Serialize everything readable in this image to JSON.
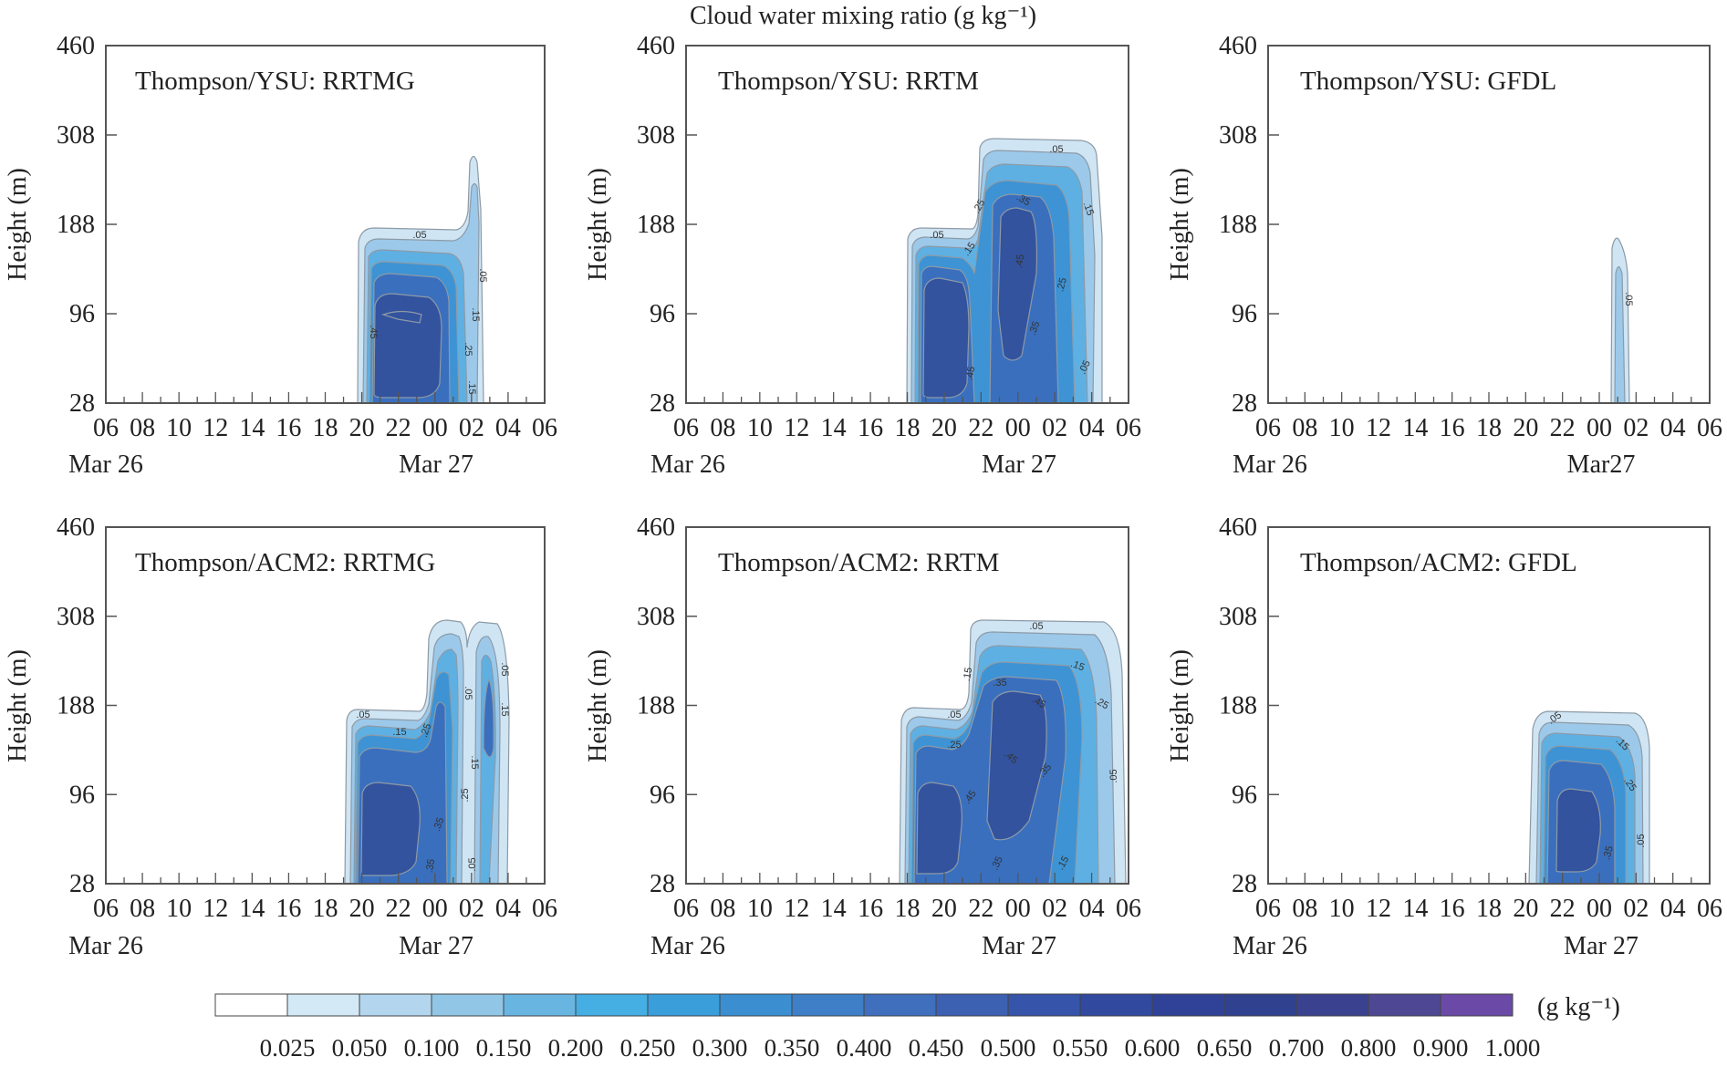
{
  "figure_title": "Cloud water mixing ratio (g kg⁻¹)",
  "colorbar": {
    "unit": "(g kg⁻¹)",
    "levels": [
      "0.025",
      "0.050",
      "0.100",
      "0.150",
      "0.200",
      "0.250",
      "0.300",
      "0.350",
      "0.400",
      "0.450",
      "0.500",
      "0.550",
      "0.600",
      "0.650",
      "0.700",
      "0.800",
      "0.900",
      "1.000"
    ],
    "colors": [
      "#ffffff",
      "#d4e9f6",
      "#b3d6ee",
      "#92c6e6",
      "#69b5e2",
      "#45aee3",
      "#3a9edb",
      "#3b8fd1",
      "#3f7fc8",
      "#3f6fbd",
      "#3c60b2",
      "#3654a9",
      "#31499f",
      "#2f4297",
      "#30418f",
      "#3a428f",
      "#4e4793",
      "#6a4aa6"
    ]
  },
  "axes": {
    "y_label": "Height (m)",
    "y_ticks": [
      "28",
      "96",
      "188",
      "308",
      "460"
    ],
    "x_ticks": [
      "06",
      "08",
      "10",
      "12",
      "14",
      "16",
      "18",
      "20",
      "22",
      "00",
      "02",
      "04",
      "06"
    ],
    "date_start": "Mar 26",
    "date_end": "Mar 27",
    "date_end_gfdl_ysu": "Mar27"
  },
  "chart_data": [
    {
      "type": "heatmap",
      "title": "Thompson/YSU: RRTMG",
      "xlabel": "",
      "ylabel": "Height (m)",
      "x_range": [
        "Mar 26 06",
        "Mar 27 06"
      ],
      "ylim": [
        28,
        460
      ],
      "cloud_time_range": [
        "Mar 26 20",
        "Mar 27 02"
      ],
      "cloud_top_m": 188,
      "max_value": 0.45,
      "contour_labels": [
        ".05",
        ".05",
        ".15",
        ".25",
        ".15",
        ".45"
      ]
    },
    {
      "type": "heatmap",
      "title": "Thompson/YSU: RRTM",
      "xlabel": "",
      "ylabel": "Height (m)",
      "x_range": [
        "Mar 26 06",
        "Mar 27 06"
      ],
      "ylim": [
        28,
        460
      ],
      "cloud_time_range": [
        "Mar 26 18",
        "Mar 27 04"
      ],
      "cloud_top_m": 308,
      "max_value": 0.45,
      "contour_labels": [
        ".05",
        ".05",
        ".15",
        ".25",
        ".35",
        ".15",
        ".45",
        ".25",
        ".35",
        ".45",
        ".05"
      ]
    },
    {
      "type": "heatmap",
      "title": "Thompson/YSU: GFDL",
      "xlabel": "",
      "ylabel": "Height (m)",
      "x_range": [
        "Mar 26 06",
        "Mar 27 06"
      ],
      "ylim": [
        28,
        460
      ],
      "cloud_time_range": [
        "Mar 27 00",
        "Mar 27 02"
      ],
      "cloud_top_m": 188,
      "max_value": 0.05,
      "contour_labels": [
        ".05"
      ]
    },
    {
      "type": "heatmap",
      "title": "Thompson/ACM2: RRTMG",
      "xlabel": "",
      "ylabel": "Height (m)",
      "x_range": [
        "Mar 26 06",
        "Mar 27 06"
      ],
      "ylim": [
        28,
        460
      ],
      "cloud_time_range": [
        "Mar 26 19",
        "Mar 27 04"
      ],
      "cloud_top_m": 308,
      "max_value": 0.45,
      "contour_labels": [
        ".05",
        ".15",
        ".25",
        ".05",
        ".05",
        ".15",
        ".15",
        ".25",
        ".35",
        ".35",
        ".05"
      ]
    },
    {
      "type": "heatmap",
      "title": "Thompson/ACM2: RRTM",
      "xlabel": "",
      "ylabel": "Height (m)",
      "x_range": [
        "Mar 26 06",
        "Mar 27 06"
      ],
      "ylim": [
        28,
        460
      ],
      "cloud_time_range": [
        "Mar 26 18",
        "Mar 27 05"
      ],
      "cloud_top_m": 308,
      "max_value": 0.45,
      "contour_labels": [
        ".05",
        ".05",
        ".15",
        ".35",
        ".45",
        ".25",
        ".25",
        ".45",
        ".35",
        ".45",
        ".05",
        ".35",
        ".15",
        ".15"
      ]
    },
    {
      "type": "heatmap",
      "title": "Thompson/ACM2: GFDL",
      "xlabel": "",
      "ylabel": "Height (m)",
      "x_range": [
        "Mar 26 06",
        "Mar 27 06"
      ],
      "ylim": [
        28,
        460
      ],
      "cloud_time_range": [
        "Mar 26 20",
        "Mar 27 03"
      ],
      "cloud_top_m": 188,
      "max_value": 0.45,
      "contour_labels": [
        ".05",
        ".15",
        ".25",
        ".35",
        ".05"
      ]
    }
  ]
}
